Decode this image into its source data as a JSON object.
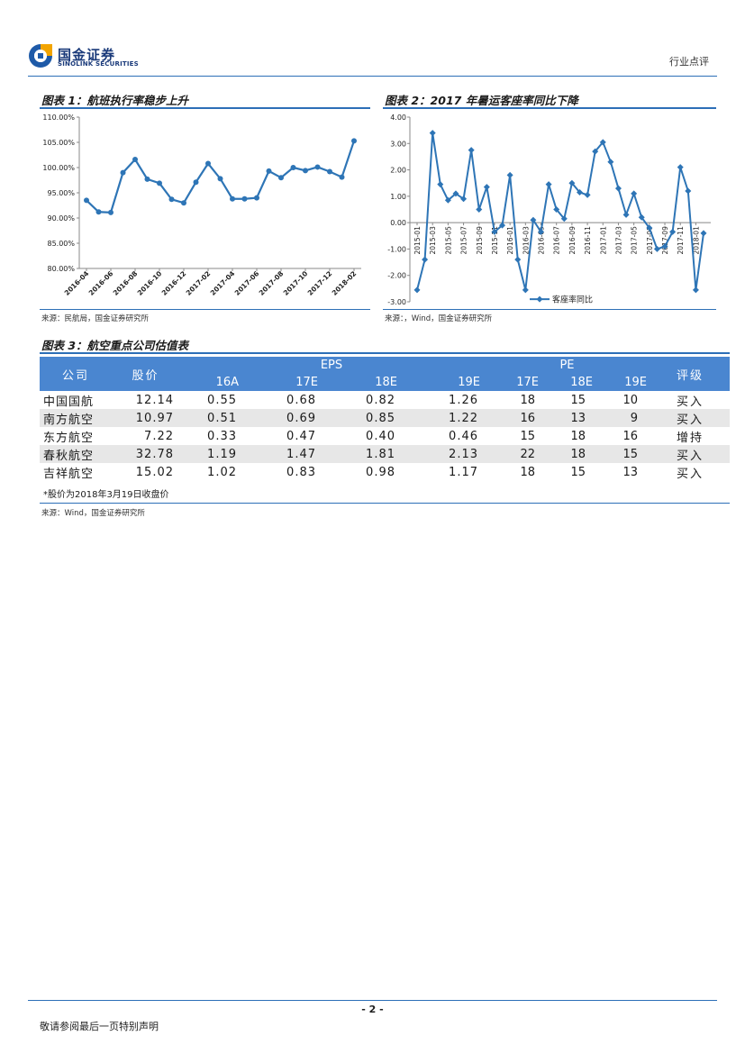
{
  "header": {
    "logo_cn": "国金证券",
    "logo_en": "SINOLINK SECURITIES",
    "section": "行业点评"
  },
  "fig1": {
    "title": "图表 1：航班执行率稳步上升",
    "source": "来源：民航局，国金证券研究所"
  },
  "fig2": {
    "title": "图表 2：2017 年暑运客座率同比下降",
    "source": "来源：，Wind，国金证券研究所"
  },
  "fig3": {
    "title": "图表 3：航空重点公司估值表",
    "source": "来源：Wind，国金证券研究所",
    "note": "*股价为2018年3月19日收盘价"
  },
  "table": {
    "col_company": "公司",
    "col_price": "股价",
    "col_eps": "EPS",
    "col_pe": "PE",
    "col_rating": "评级",
    "eps_years": [
      "16A",
      "17E",
      "18E",
      "19E"
    ],
    "pe_years": [
      "17E",
      "18E",
      "19E"
    ],
    "rows": [
      {
        "company": "中国国航",
        "price": "12.14",
        "eps16": "0.55",
        "eps17": "0.68",
        "eps18": "0.82",
        "eps19": "1.26",
        "pe17": "18",
        "pe18": "15",
        "pe19": "10",
        "rating": "买入"
      },
      {
        "company": "南方航空",
        "price": "10.97",
        "eps16": "0.51",
        "eps17": "0.69",
        "eps18": "0.85",
        "eps19": "1.22",
        "pe17": "16",
        "pe18": "13",
        "pe19": "9",
        "rating": "买入"
      },
      {
        "company": "东方航空",
        "price": "7.22",
        "eps16": "0.33",
        "eps17": "0.47",
        "eps18": "0.40",
        "eps19": "0.46",
        "pe17": "15",
        "pe18": "18",
        "pe19": "16",
        "rating": "增持"
      },
      {
        "company": "春秋航空",
        "price": "32.78",
        "eps16": "1.19",
        "eps17": "1.47",
        "eps18": "1.81",
        "eps19": "2.13",
        "pe17": "22",
        "pe18": "18",
        "pe19": "15",
        "rating": "买入"
      },
      {
        "company": "吉祥航空",
        "price": "15.02",
        "eps16": "1.02",
        "eps17": "0.83",
        "eps18": "0.98",
        "eps19": "1.17",
        "pe17": "18",
        "pe18": "15",
        "pe19": "13",
        "rating": "买入"
      }
    ]
  },
  "footer": {
    "page": "- 2 -",
    "disclaimer": "敬请参阅最后一页特别声明"
  },
  "colors": {
    "accent": "#2c6fb7",
    "series": "#2e75b6",
    "table_header": "#4a86d0",
    "row_alt": "#e7e7e7"
  },
  "chart_data": [
    {
      "type": "line",
      "ylim": [
        80,
        110
      ],
      "yticks": [
        "80.00%",
        "85.00%",
        "90.00%",
        "95.00%",
        "100.00%",
        "105.00%",
        "110.00%"
      ],
      "x_tick_labels": [
        "2016-04",
        "2016-06",
        "2016-08",
        "2016-10",
        "2016-12",
        "2017-02",
        "2017-04",
        "2017-06",
        "2017-08",
        "2017-10",
        "2017-12",
        "2018-02"
      ],
      "x": [
        "2016-04",
        "2016-05",
        "2016-06",
        "2016-07",
        "2016-08",
        "2016-09",
        "2016-10",
        "2016-11",
        "2016-12",
        "2017-01",
        "2017-02",
        "2017-03",
        "2017-04",
        "2017-05",
        "2017-06",
        "2017-07",
        "2017-08",
        "2017-09",
        "2017-10",
        "2017-11",
        "2017-12",
        "2018-01",
        "2018-02"
      ],
      "values": [
        93.5,
        91.2,
        91.1,
        99.0,
        101.6,
        97.7,
        96.9,
        93.7,
        93.0,
        97.1,
        100.8,
        97.8,
        93.8,
        93.8,
        94.0,
        99.3,
        98.0,
        100.0,
        99.4,
        100.1,
        99.2,
        98.1,
        105.3
      ],
      "grid": false,
      "legend": "none"
    },
    {
      "type": "line",
      "ylim": [
        -3,
        4
      ],
      "yticks": [
        "-3.00",
        "-2.00",
        "-1.00",
        "0.00",
        "1.00",
        "2.00",
        "3.00",
        "4.00"
      ],
      "x_tick_labels": [
        "2015-01",
        "2015-03",
        "2015-05",
        "2015-07",
        "2015-09",
        "2015-11",
        "2016-01",
        "2016-03",
        "2016-05",
        "2016-07",
        "2016-09",
        "2016-11",
        "2017-01",
        "2017-03",
        "2017-05",
        "2017-07",
        "2017-09",
        "2017-11",
        "2018-01"
      ],
      "x": [
        "2015-01",
        "2015-02",
        "2015-03",
        "2015-04",
        "2015-05",
        "2015-06",
        "2015-07",
        "2015-08",
        "2015-09",
        "2015-10",
        "2015-11",
        "2015-12",
        "2016-01",
        "2016-02",
        "2016-03",
        "2016-04",
        "2016-05",
        "2016-06",
        "2016-07",
        "2016-08",
        "2016-09",
        "2016-10",
        "2016-11",
        "2016-12",
        "2017-01",
        "2017-02",
        "2017-03",
        "2017-04",
        "2017-05",
        "2017-06",
        "2017-07",
        "2017-08",
        "2017-09",
        "2017-10",
        "2017-11",
        "2017-12",
        "2018-01",
        "2018-02"
      ],
      "series": [
        {
          "name": "客座率同比",
          "values": [
            -2.55,
            -1.4,
            3.4,
            1.45,
            0.85,
            1.1,
            0.9,
            2.75,
            0.5,
            1.35,
            -0.35,
            -0.1,
            1.8,
            -1.4,
            -2.55,
            0.1,
            -0.35,
            1.45,
            0.5,
            0.15,
            1.5,
            1.15,
            1.05,
            2.7,
            3.05,
            2.3,
            1.3,
            0.3,
            1.1,
            0.2,
            -0.2,
            -1.0,
            -0.9,
            -0.35,
            2.1,
            1.2,
            -2.55,
            -0.4
          ]
        }
      ],
      "grid": false,
      "legend": "bottom"
    }
  ]
}
